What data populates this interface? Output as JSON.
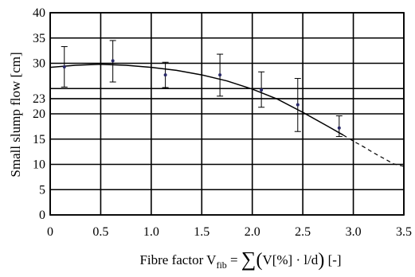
{
  "chart_data": {
    "type": "scatter",
    "xlabel_parts": {
      "prefix": "Fibre factor V",
      "subscript": "fib",
      "equals": " = ",
      "sum": "∑",
      "paren_open": "(",
      "body": "V[%] · l/d",
      "paren_close": ")",
      "suffix": " [-]"
    },
    "ylabel": "Small slump flow [cm]",
    "xlim": [
      0,
      3.5
    ],
    "ylim": [
      0,
      40
    ],
    "x_ticks": [
      "0",
      "0.5",
      "1.0",
      "1.5",
      "2.0",
      "2.5",
      "3.0",
      "3.5"
    ],
    "y_ticks": [
      "0",
      "5",
      "10",
      "15",
      "20",
      "23",
      "25",
      "30",
      "35",
      "40"
    ],
    "x_tick_values": [
      0,
      0.5,
      1.0,
      1.5,
      2.0,
      2.5,
      3.0,
      3.5
    ],
    "y_tick_values": [
      0,
      5,
      10,
      15,
      20,
      23,
      25,
      30,
      35,
      40
    ],
    "y_tick_labels_shown": [
      "0",
      "5",
      "10",
      "15",
      "20",
      "23",
      "",
      "30",
      "35",
      "40"
    ],
    "grid": true,
    "points": [
      {
        "x": 0.14,
        "y": 29.3,
        "err_low": 25.3,
        "err_high": 33.3
      },
      {
        "x": 0.62,
        "y": 30.5,
        "err_low": 26.3,
        "err_high": 34.5
      },
      {
        "x": 1.14,
        "y": 27.7,
        "err_low": 25.2,
        "err_high": 30.2
      },
      {
        "x": 1.68,
        "y": 27.7,
        "err_low": 23.5,
        "err_high": 31.8
      },
      {
        "x": 2.09,
        "y": 24.7,
        "err_low": 21.3,
        "err_high": 28.3
      },
      {
        "x": 2.45,
        "y": 21.8,
        "err_low": 16.5,
        "err_high": 27.0
      },
      {
        "x": 2.86,
        "y": 17.2,
        "err_low": 15.5,
        "err_high": 19.6
      }
    ],
    "fit_curve": {
      "solid": [
        [
          0.0,
          29.2
        ],
        [
          0.25,
          29.6
        ],
        [
          0.5,
          29.8
        ],
        [
          0.75,
          29.6
        ],
        [
          1.0,
          29.2
        ],
        [
          1.25,
          28.6
        ],
        [
          1.5,
          27.7
        ],
        [
          1.75,
          26.5
        ],
        [
          2.0,
          24.9
        ],
        [
          2.25,
          22.9
        ],
        [
          2.5,
          20.3
        ],
        [
          2.75,
          17.5
        ],
        [
          2.9,
          15.8
        ]
      ],
      "dashed": [
        [
          2.9,
          15.8
        ],
        [
          3.0,
          14.6
        ],
        [
          3.1,
          13.5
        ],
        [
          3.2,
          12.3
        ],
        [
          3.3,
          11.2
        ],
        [
          3.4,
          10.1
        ],
        [
          3.5,
          9.6
        ]
      ]
    },
    "colors": {
      "line": "#000000",
      "marker": "#2a2a6a",
      "grid": "#000000"
    }
  }
}
